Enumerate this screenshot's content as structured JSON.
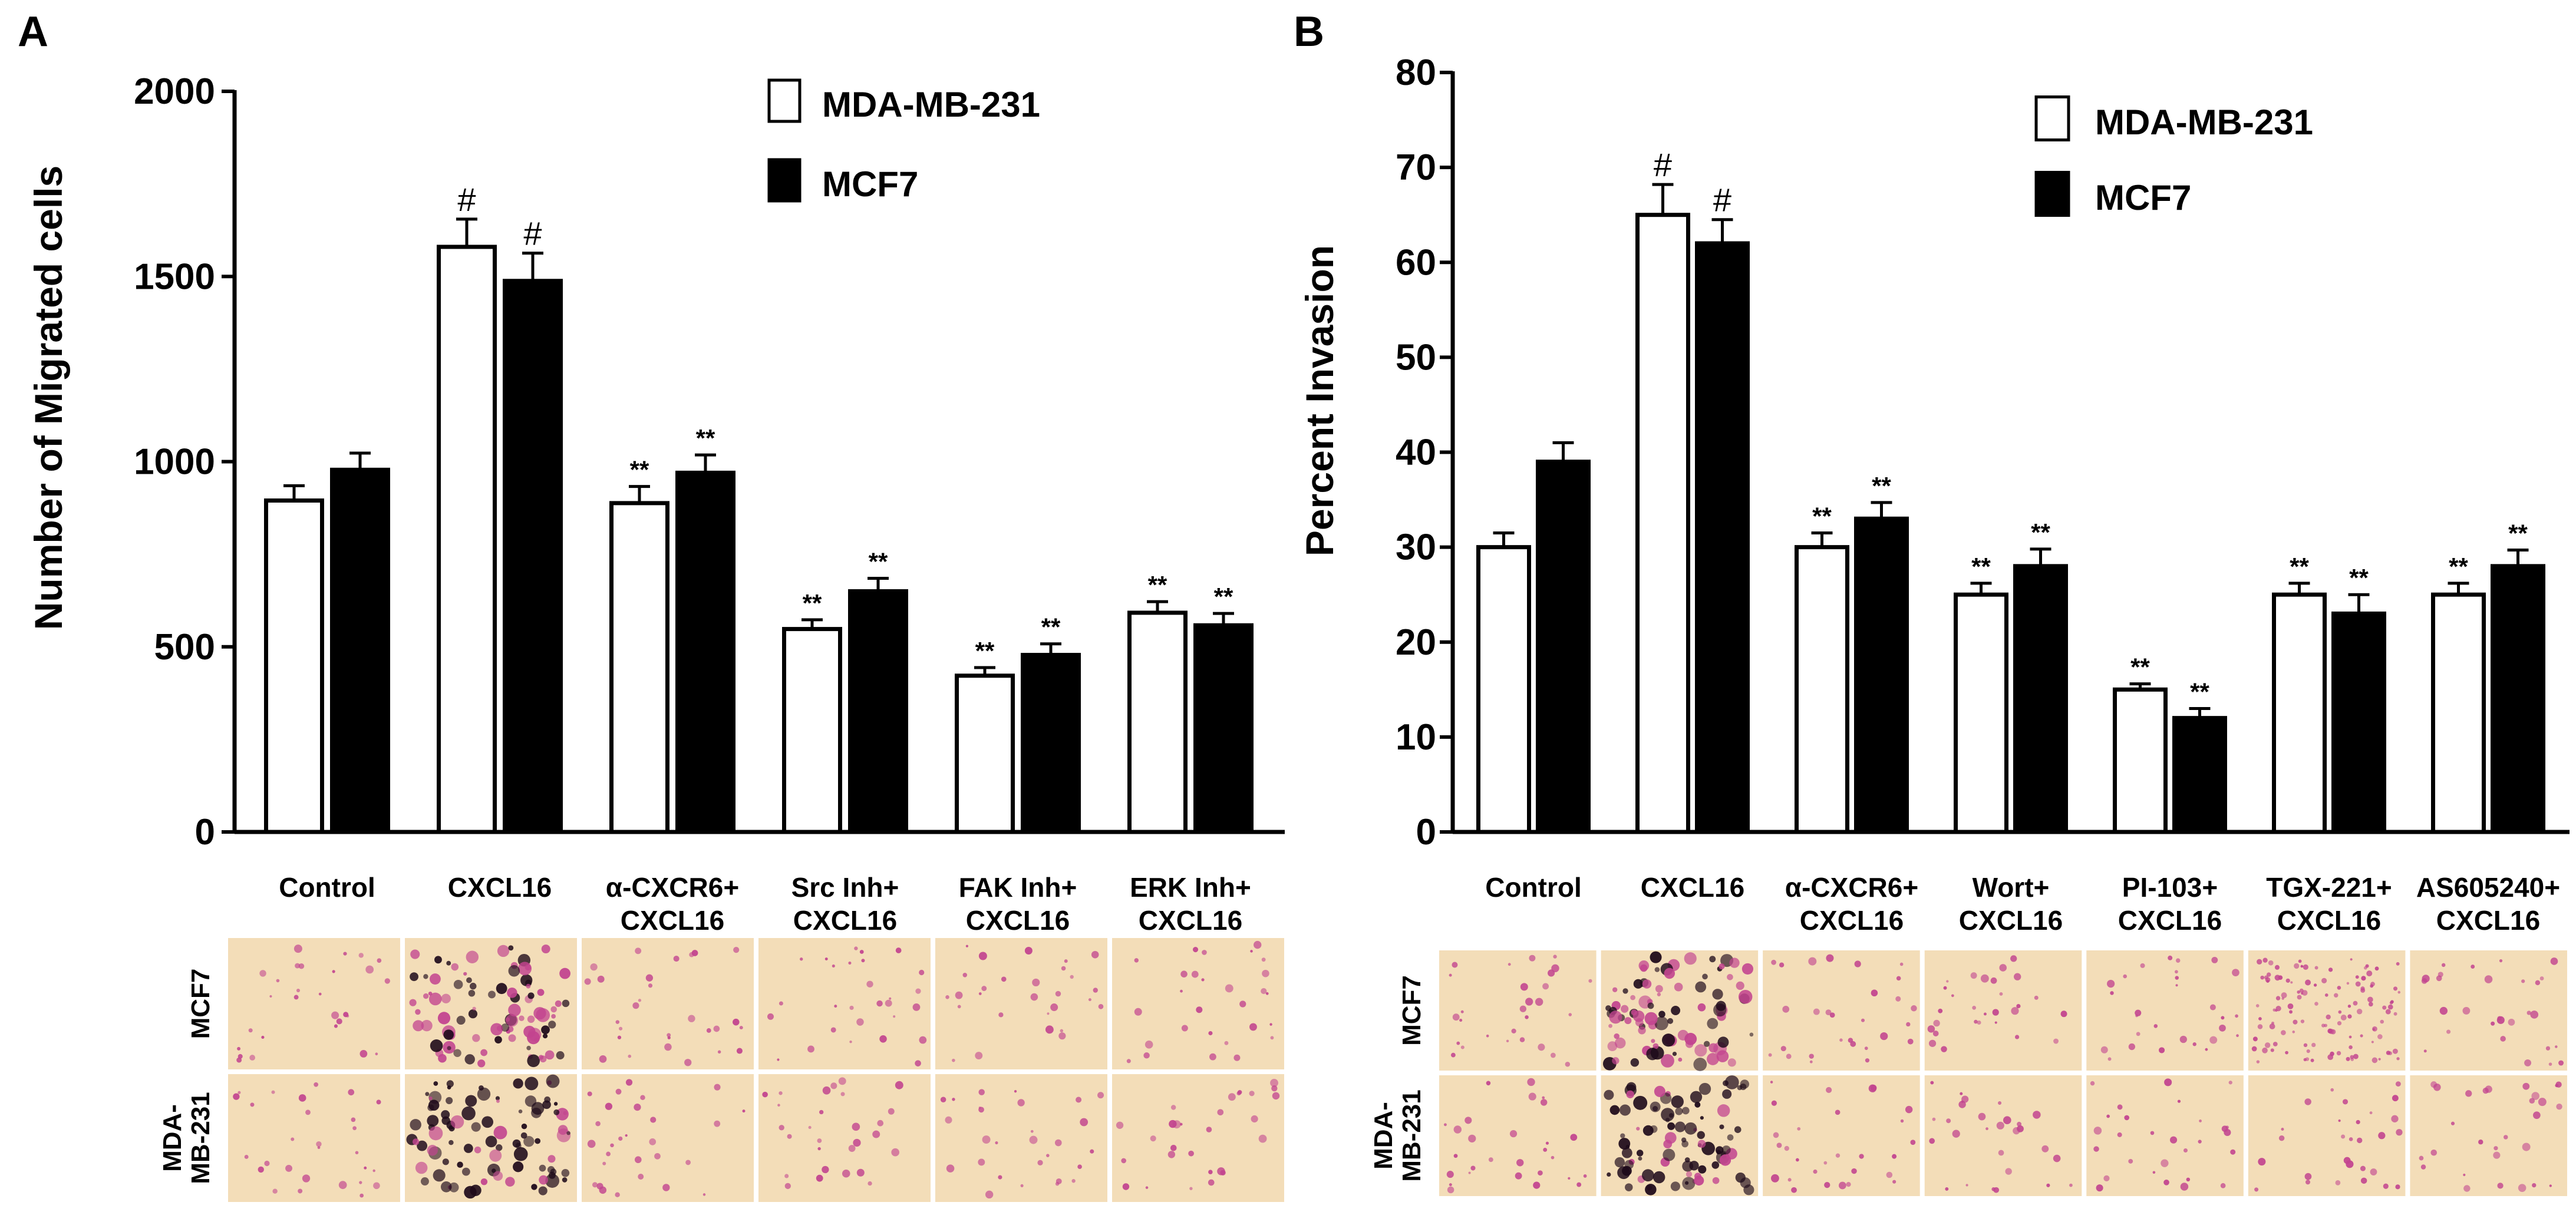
{
  "chart_data": [
    {
      "panel": "A",
      "type": "bar",
      "title": "",
      "xlabel": "",
      "ylabel": "Number of Migrated cells",
      "ylim": [
        0,
        2000
      ],
      "yticks": [
        "0",
        "500",
        "1000",
        "1500",
        "2000"
      ],
      "categories": [
        [
          "Control"
        ],
        [
          "CXCL16"
        ],
        [
          "α-CXCR6+",
          "CXCL16"
        ],
        [
          "Src Inh+",
          "CXCL16"
        ],
        [
          "FAK Inh+",
          "CXCL16"
        ],
        [
          "ERK Inh+",
          "CXCL16"
        ]
      ],
      "series": [
        {
          "name": "MDA-MB-231",
          "fill": "#ffffff",
          "values": [
            895,
            1580,
            888,
            548,
            422,
            592
          ],
          "errors": [
            40,
            75,
            45,
            25,
            22,
            30
          ],
          "marks": [
            "",
            "#",
            "**",
            "**",
            "**",
            "**"
          ]
        },
        {
          "name": "MCF7",
          "fill": "#000000",
          "values": [
            978,
            1488,
            970,
            650,
            478,
            558
          ],
          "errors": [
            45,
            75,
            48,
            35,
            30,
            32
          ],
          "marks": [
            "",
            "#",
            "**",
            "**",
            "**",
            "**"
          ]
        }
      ],
      "legend": "top-right",
      "micrograph_rows": [
        "MCF7",
        "MDA-MB-231"
      ]
    },
    {
      "panel": "B",
      "type": "bar",
      "title": "",
      "xlabel": "",
      "ylabel": "Percent Invasion",
      "ylim": [
        0,
        80
      ],
      "yticks": [
        "0",
        "10",
        "20",
        "30",
        "40",
        "50",
        "60",
        "70",
        "80"
      ],
      "categories": [
        [
          "Control"
        ],
        [
          "CXCL16"
        ],
        [
          "α-CXCR6+",
          "CXCL16"
        ],
        [
          "Wort+",
          "CXCL16"
        ],
        [
          "PI-103+",
          "CXCL16"
        ],
        [
          "TGX-221+",
          "CXCL16"
        ],
        [
          "AS605240+",
          "CXCL16"
        ]
      ],
      "series": [
        {
          "name": "MDA-MB-231",
          "fill": "#ffffff",
          "values": [
            30,
            65,
            30,
            25,
            15,
            25,
            25
          ],
          "errors": [
            1.5,
            3.2,
            1.5,
            1.2,
            0.6,
            1.2,
            1.2
          ],
          "marks": [
            "",
            "#",
            "**",
            "**",
            "**",
            "**",
            "**"
          ]
        },
        {
          "name": "MCF7",
          "fill": "#000000",
          "values": [
            39,
            62,
            33,
            28,
            12,
            23,
            28
          ],
          "errors": [
            2,
            2.5,
            1.7,
            1.8,
            1.0,
            2.0,
            1.7
          ],
          "marks": [
            "",
            "#",
            "**",
            "**",
            "**",
            "**",
            "**"
          ]
        }
      ],
      "legend": "top-right",
      "micrograph_rows": [
        "MCF7",
        "MDA-MB-231"
      ]
    }
  ],
  "colors": {
    "micrograph_bg": "#f3ddb8",
    "stain": "#c2448f",
    "dense_stain": "#1e0a1a"
  }
}
